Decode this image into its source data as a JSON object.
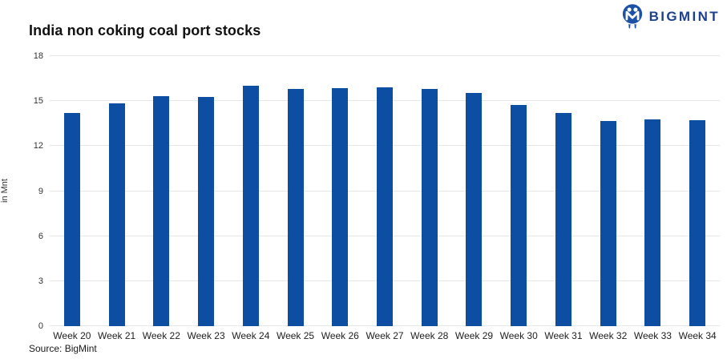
{
  "header": {
    "title": "India non coking coal port stocks",
    "logo_text": "BIGMINT",
    "logo_color": "#1d418f"
  },
  "footer": {
    "source": "Source: BigMint"
  },
  "chart_data": {
    "type": "bar",
    "categories": [
      "Week 20",
      "Week 21",
      "Week 22",
      "Week 23",
      "Week 24",
      "Week 25",
      "Week 26",
      "Week 27",
      "Week 28",
      "Week 29",
      "Week 30",
      "Week 31",
      "Week 32",
      "Week 33",
      "Week 34"
    ],
    "values": [
      14.2,
      14.85,
      15.35,
      15.3,
      16.0,
      15.8,
      15.85,
      15.9,
      15.8,
      15.55,
      14.75,
      14.2,
      13.65,
      13.8,
      13.75
    ],
    "title": "India non coking coal port stocks",
    "xlabel": "",
    "ylabel": "in Mnt",
    "ylim": [
      0,
      18
    ],
    "yticks": [
      0,
      3,
      6,
      9,
      12,
      15,
      18
    ],
    "bar_color": "#0d4ea3",
    "gridline_color": "#e7e7e7",
    "grid": true,
    "legend": "none"
  }
}
